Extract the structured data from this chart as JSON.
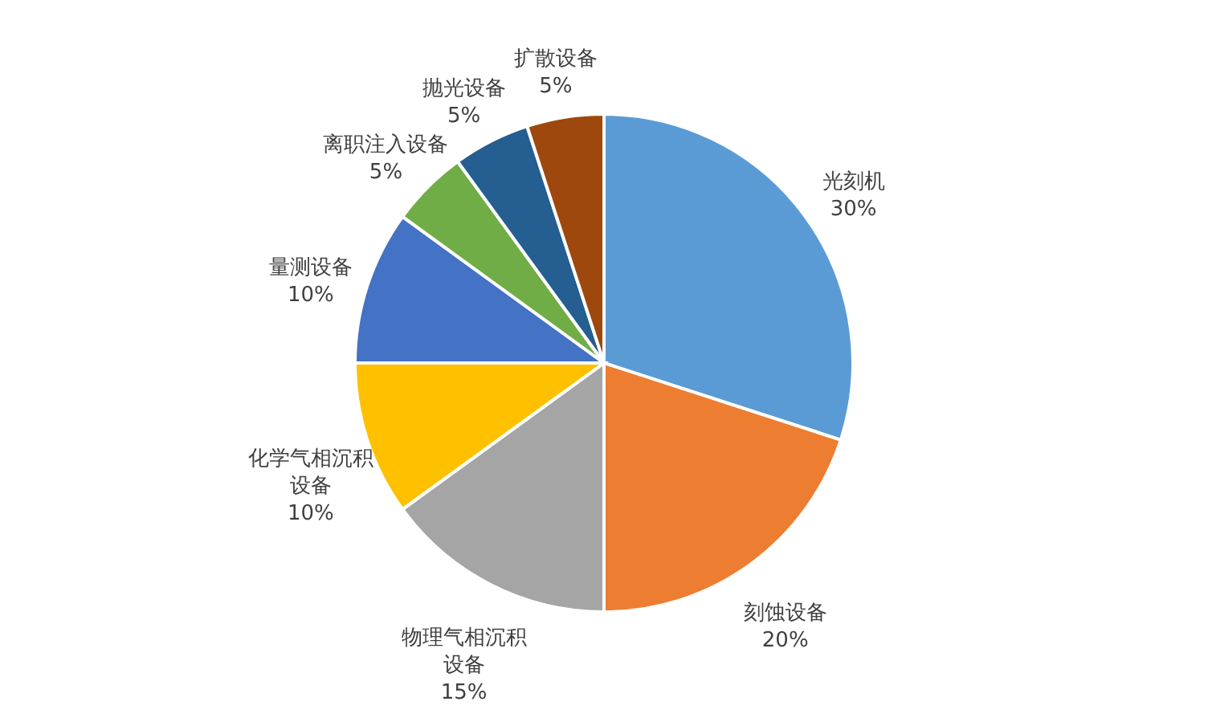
{
  "chart_data": {
    "type": "pie",
    "categories": [
      "光刻机",
      "刻蚀设备",
      "物理气相沉积设备",
      "化学气相沉积设备",
      "量测设备",
      "离职注入设备",
      "抛光设备",
      "扩散设备"
    ],
    "values": [
      30,
      20,
      15,
      10,
      10,
      5,
      5,
      5
    ],
    "value_labels": [
      "30%",
      "20%",
      "15%",
      "10%",
      "10%",
      "5%",
      "5%",
      "5%"
    ],
    "colors": [
      "#5b9bd5",
      "#ed7d31",
      "#a5a5a5",
      "#ffc000",
      "#4472c4",
      "#70ad47",
      "#255e91",
      "#9e480e"
    ],
    "legend": false
  }
}
